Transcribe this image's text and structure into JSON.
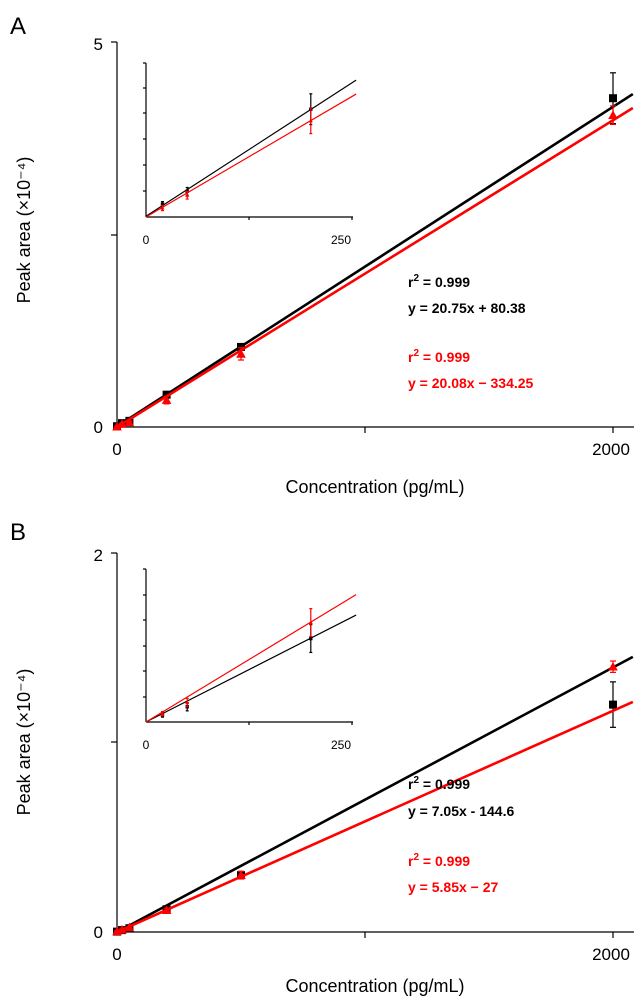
{
  "chart_data": [
    {
      "type": "scatter",
      "panel_label": "A",
      "xlabel": "Concentration (pg/mL)",
      "ylabel": "Peak area (×10⁻⁴)",
      "xlim": [
        0,
        2000
      ],
      "ylim": [
        0,
        5
      ],
      "x_ticks": [
        "0",
        "2000"
      ],
      "y_ticks": [
        "0",
        "5"
      ],
      "series": [
        {
          "color": "#000000",
          "marker": "square",
          "x": [
            0,
            20,
            50,
            200,
            500,
            2000
          ],
          "y": [
            0.01,
            0.05,
            0.08,
            0.42,
            1.04,
            4.27
          ],
          "err": [
            0.005,
            0.01,
            0.015,
            0.04,
            0.03,
            0.33
          ],
          "fit": {
            "slope": 20.75,
            "intercept": 80.38
          },
          "r2_label": "0.999",
          "equation_label": "y = 20.75x + 80.38"
        },
        {
          "color": "#ff0000",
          "marker": "triangle",
          "x": [
            0,
            20,
            50,
            200,
            500,
            2000
          ],
          "y": [
            0.005,
            0.04,
            0.06,
            0.35,
            0.95,
            4.05
          ],
          "err": [
            0.005,
            0.01,
            0.015,
            0.05,
            0.08,
            0.12
          ],
          "fit": {
            "slope": 20.08,
            "intercept": -334.25
          },
          "r2_label": "0.999",
          "equation_label": "y = 20.08x − 334.25"
        }
      ],
      "inset": {
        "xlim": [
          0,
          250
        ],
        "ylim": [
          0,
          0.6
        ],
        "x_ticks": [
          "0",
          "250"
        ],
        "black_points": {
          "x": [
            20,
            50,
            200
          ],
          "y": [
            0.05,
            0.1,
            0.42
          ],
          "err": [
            0.01,
            0.015,
            0.06
          ]
        },
        "red_points": {
          "x": [
            20,
            50,
            200
          ],
          "y": [
            0.035,
            0.085,
            0.375
          ],
          "err": [
            0.01,
            0.015,
            0.05
          ]
        }
      }
    },
    {
      "type": "scatter",
      "panel_label": "B",
      "xlabel": "Concentration (pg/mL)",
      "ylabel": "Peak area (×10⁻⁴)",
      "xlim": [
        0,
        2000
      ],
      "ylim": [
        0,
        2
      ],
      "x_ticks": [
        "0",
        "2000"
      ],
      "y_ticks": [
        "0",
        "2"
      ],
      "series": [
        {
          "color": "#000000",
          "marker": "square",
          "x": [
            0,
            20,
            50,
            200,
            500,
            2000
          ],
          "y": [
            0.002,
            0.01,
            0.02,
            0.12,
            0.3,
            1.2
          ],
          "err": [
            0.003,
            0.004,
            0.005,
            0.01,
            0.02,
            0.12
          ],
          "fit": {
            "slope": 7.05,
            "intercept": -144.6
          },
          "r2_label": "0.999",
          "equation_label": "y = 7.05x - 144.6"
        },
        {
          "color": "#ff0000",
          "marker": "triangle",
          "x": [
            0,
            20,
            50,
            200,
            500,
            2000
          ],
          "y": [
            0.003,
            0.012,
            0.024,
            0.115,
            0.3,
            1.4
          ],
          "err": [
            0.003,
            0.004,
            0.005,
            0.01,
            0.02,
            0.03
          ],
          "fit": {
            "slope": 5.85,
            "intercept": -27
          },
          "r2_label": "0.999",
          "equation_label": "y = 5.85x − 27"
        }
      ],
      "inset": {
        "xlim": [
          0,
          250
        ],
        "ylim": [
          0,
          0.22
        ],
        "x_ticks": [
          "0",
          "250"
        ],
        "black_points": {
          "x": [
            20,
            50,
            200
          ],
          "y": [
            0.01,
            0.022,
            0.12
          ],
          "err": [
            0.003,
            0.006,
            0.02
          ]
        },
        "red_points": {
          "x": [
            20,
            50,
            200
          ],
          "y": [
            0.012,
            0.028,
            0.143
          ],
          "err": [
            0.003,
            0.006,
            0.02
          ]
        }
      }
    }
  ]
}
